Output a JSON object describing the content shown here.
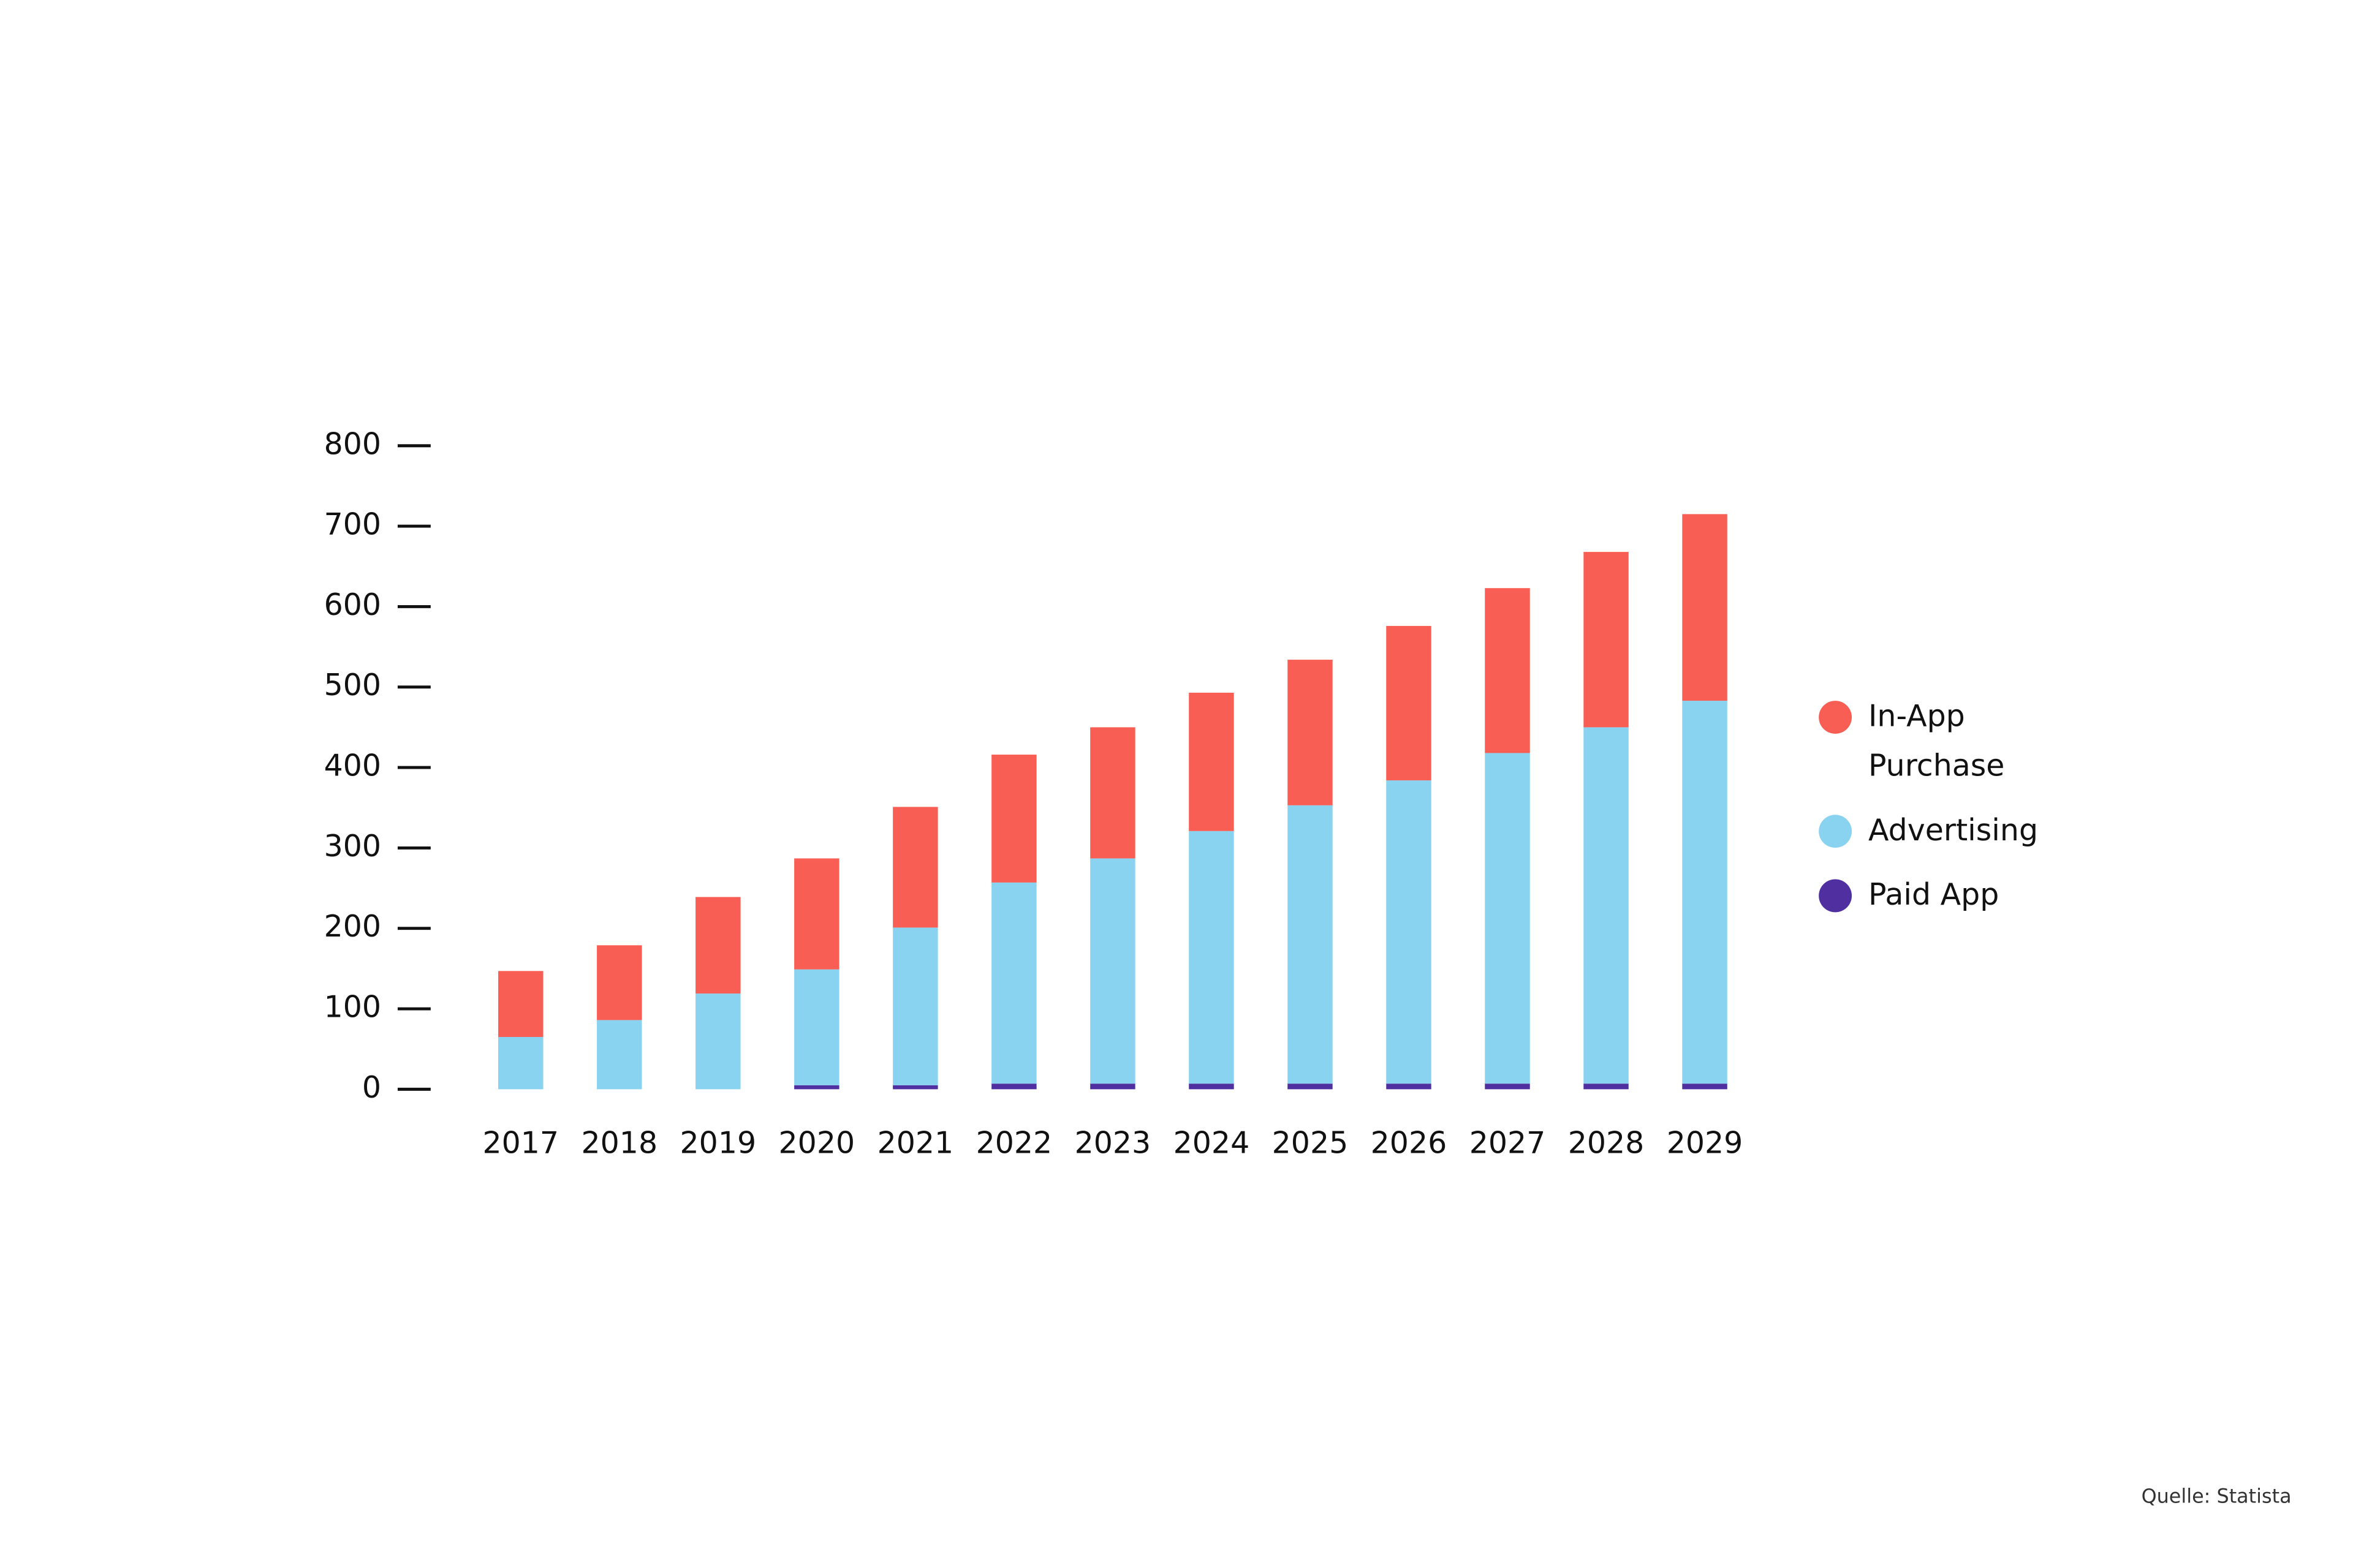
{
  "chart_data": {
    "type": "bar",
    "stacked": true,
    "categories": [
      "2017",
      "2018",
      "2019",
      "2020",
      "2021",
      "2022",
      "2023",
      "2024",
      "2025",
      "2026",
      "2027",
      "2028",
      "2029"
    ],
    "series": [
      {
        "name": "In-App Purchase",
        "color": "#f95e54",
        "values": [
          82,
          93,
          120,
          138,
          150,
          159,
          163,
          172,
          181,
          192,
          205,
          218,
          232
        ]
      },
      {
        "name": "Advertising",
        "color": "#89d3f0",
        "values": [
          65,
          86,
          119,
          144,
          196,
          250,
          280,
          314,
          346,
          377,
          411,
          443,
          476
        ]
      },
      {
        "name": "Paid App",
        "color": "#5030a0",
        "values": [
          0,
          0,
          0,
          5,
          5,
          7,
          7,
          7,
          7,
          7,
          7,
          7,
          7
        ]
      }
    ],
    "ylim": [
      0,
      800
    ],
    "yticks": [
      0,
      100,
      200,
      300,
      400,
      500,
      600,
      700,
      800
    ],
    "source": "Quelle: Statista"
  }
}
